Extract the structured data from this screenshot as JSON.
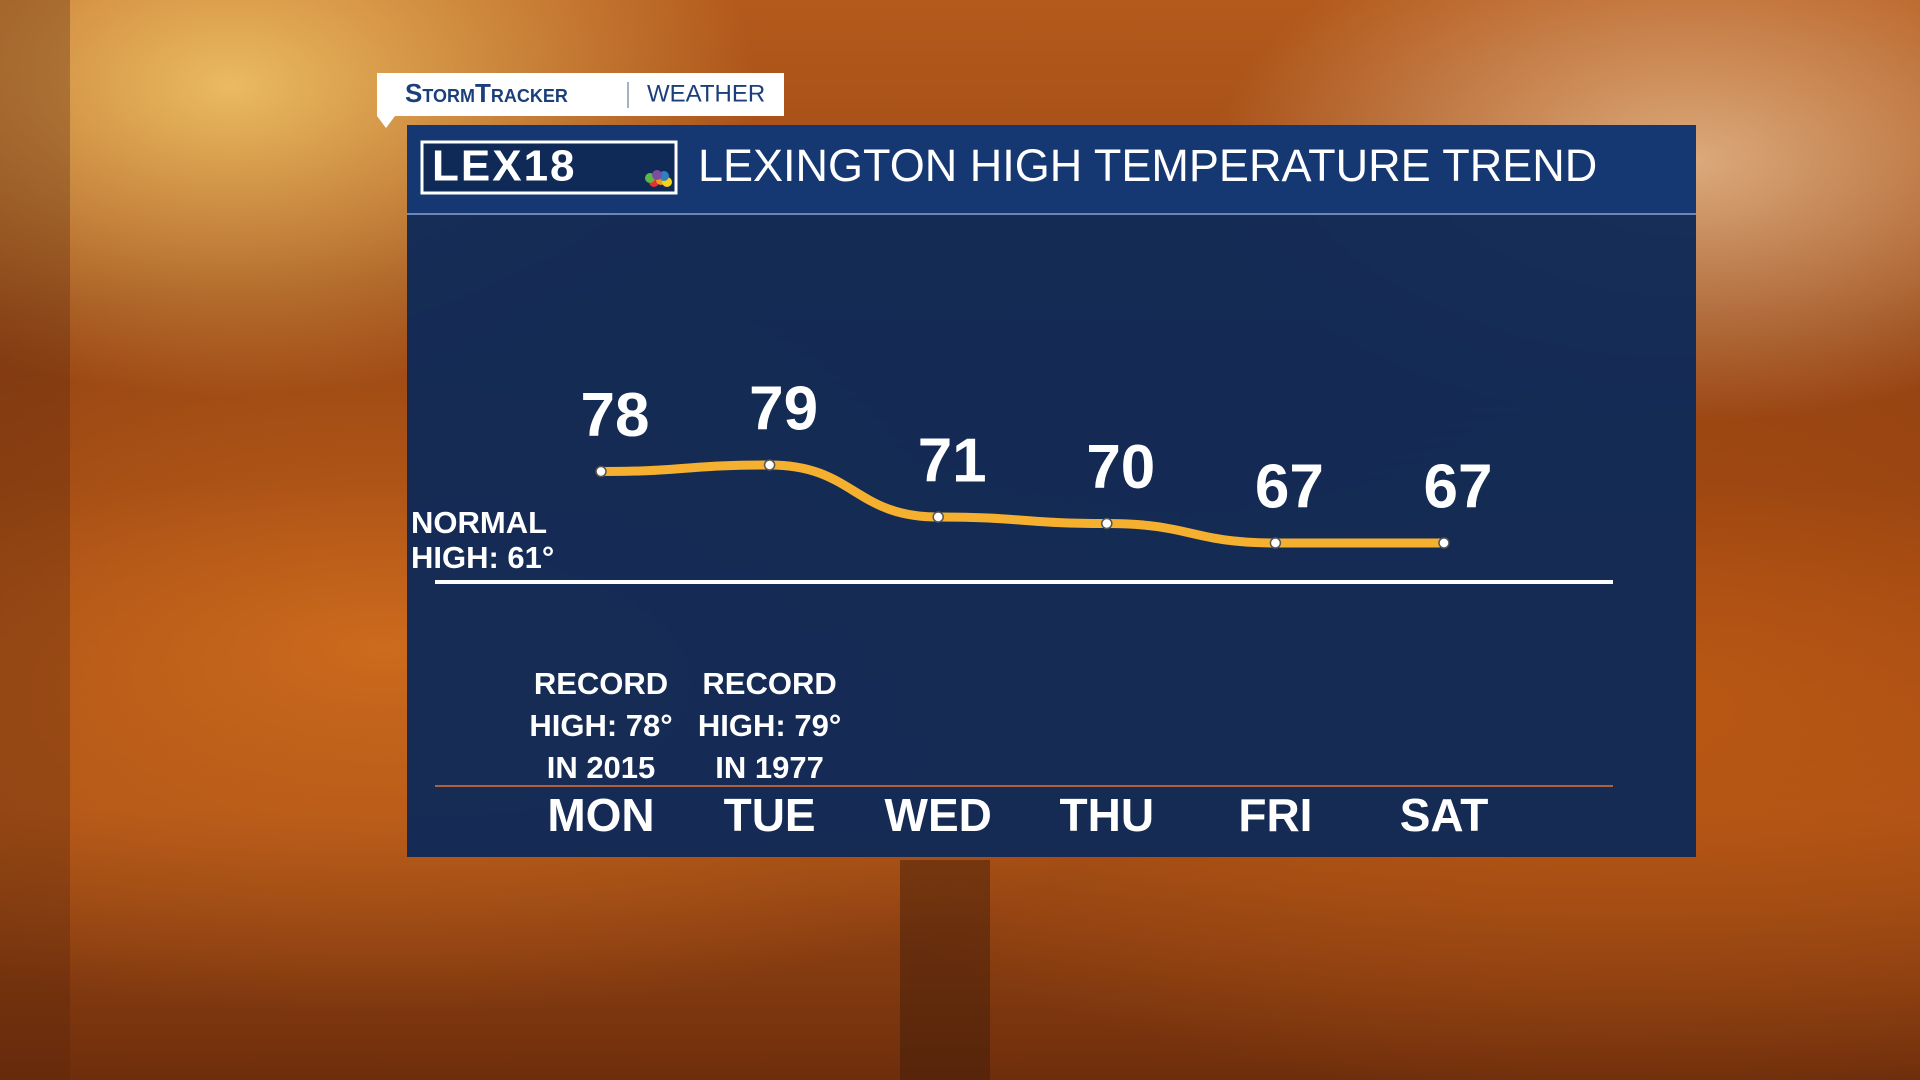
{
  "brand": {
    "name": "StormTracker",
    "section": "WEATHER",
    "logo": "LEX18"
  },
  "chart_data": {
    "type": "line",
    "title": "LEXINGTON HIGH TEMPERATURE TREND",
    "categories": [
      "MON",
      "TUE",
      "WED",
      "THU",
      "FRI",
      "SAT"
    ],
    "values": [
      78,
      79,
      71,
      70,
      67,
      67
    ],
    "color": "#f6b030",
    "reference_line": {
      "value": 61,
      "label": [
        "NORMAL",
        "HIGH: 61°"
      ]
    },
    "annotations": [
      [
        "RECORD",
        "HIGH: 78°",
        "IN 2015"
      ],
      [
        "RECORD",
        "HIGH: 79°",
        "IN 1977"
      ]
    ]
  }
}
